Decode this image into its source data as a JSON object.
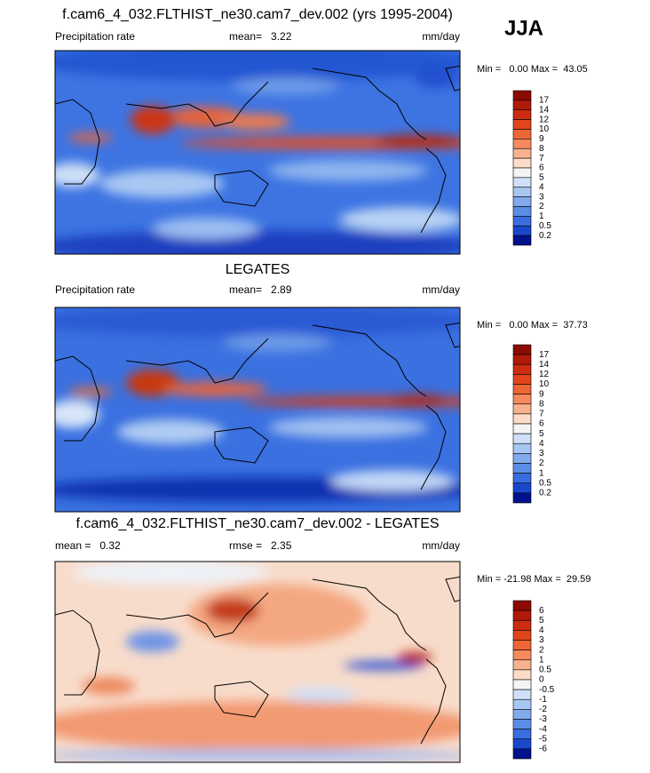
{
  "season": "JJA",
  "panels": [
    {
      "title": "f.cam6_4_032.FLTHIST_ne30.cam7_dev.002 (yrs 1995-2004)",
      "left_label": "Precipitation rate",
      "center_label": "mean=   3.22",
      "units": "mm/day",
      "minmax": "Min =   0.00 Max =  43.05",
      "colorbar_labels": [
        "17",
        "14",
        "12",
        "10",
        "9",
        "8",
        "7",
        "6",
        "5",
        "4",
        "3",
        "2",
        "1",
        "0.5",
        "0.2"
      ],
      "colorbar_colors": [
        "#8c0a00",
        "#b01a08",
        "#cc2c10",
        "#e0451c",
        "#ee6636",
        "#f48a5e",
        "#f8b290",
        "#fcdcc8",
        "#f4f4f4",
        "#cfe0f8",
        "#a8c6f2",
        "#82aaec",
        "#5c8de6",
        "#3a6ee0",
        "#1a48cc",
        "#00128c"
      ]
    },
    {
      "title": "LEGATES",
      "left_label": "Precipitation rate",
      "center_label": "mean=   2.89",
      "units": "mm/day",
      "minmax": "Min =   0.00 Max =  37.73",
      "colorbar_labels": [
        "17",
        "14",
        "12",
        "10",
        "9",
        "8",
        "7",
        "6",
        "5",
        "4",
        "3",
        "2",
        "1",
        "0.5",
        "0.2"
      ],
      "colorbar_colors": [
        "#8c0a00",
        "#b01a08",
        "#cc2c10",
        "#e0451c",
        "#ee6636",
        "#f48a5e",
        "#f8b290",
        "#fcdcc8",
        "#f4f4f4",
        "#cfe0f8",
        "#a8c6f2",
        "#82aaec",
        "#5c8de6",
        "#3a6ee0",
        "#1a48cc",
        "#00128c"
      ]
    },
    {
      "title": "f.cam6_4_032.FLTHIST_ne30.cam7_dev.002 - LEGATES",
      "left_label": "mean =   0.32",
      "center_label": "rmse =   2.35",
      "units": "mm/day",
      "minmax": "Min = -21.98 Max =  29.59",
      "colorbar_labels": [
        "6",
        "5",
        "4",
        "3",
        "2",
        "1",
        "0.5",
        "0",
        "-0.5",
        "-1",
        "-2",
        "-3",
        "-4",
        "-5",
        "-6"
      ],
      "colorbar_colors": [
        "#8c0a00",
        "#b01a08",
        "#cc2c10",
        "#e0451c",
        "#ee6636",
        "#f48a5e",
        "#f8b290",
        "#fcdcc8",
        "#f4f4f4",
        "#cfe0f8",
        "#a8c6f2",
        "#82aaec",
        "#5c8de6",
        "#3a6ee0",
        "#1a48cc",
        "#00128c"
      ]
    }
  ]
}
